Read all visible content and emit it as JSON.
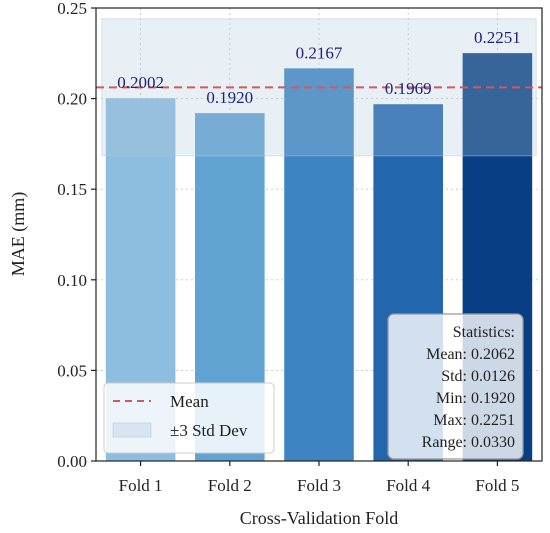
{
  "chart_data": {
    "type": "bar",
    "title": "",
    "xlabel": "Cross-Validation Fold",
    "ylabel": "MAE (mm)",
    "categories": [
      "Fold 1",
      "Fold 2",
      "Fold 3",
      "Fold 4",
      "Fold 5"
    ],
    "values": [
      0.2002,
      0.192,
      0.2167,
      0.1969,
      0.2251
    ],
    "value_labels": [
      "0.2002",
      "0.1920",
      "0.2167",
      "0.1969",
      "0.2251"
    ],
    "bar_colors": [
      "#8dbddf",
      "#61a3d2",
      "#3d84c3",
      "#2266ae",
      "#083f84"
    ],
    "ylim": [
      0,
      0.25
    ],
    "yticks": [
      0.0,
      0.05,
      0.1,
      0.15,
      0.2,
      0.25
    ],
    "ytick_labels": [
      "0.00",
      "0.05",
      "0.10",
      "0.15",
      "0.20",
      "0.25"
    ],
    "grid": true,
    "mean": 0.2062,
    "std": 0.0126,
    "band_sigma": 3,
    "mean_color": "#d6565a",
    "band_color": "#b0c8dc",
    "legend_position": "lower-left",
    "legend": [
      {
        "label": "Mean",
        "style": "dashed-line"
      },
      {
        "label": "±3 Std Dev",
        "style": "shaded-band"
      }
    ],
    "stats_box_position": "lower-right",
    "stats_lines": [
      "Statistics:",
      "Mean: 0.2062",
      "Std: 0.0126",
      "Min: 0.1920",
      "Max: 0.2251",
      "Range: 0.0330"
    ]
  }
}
